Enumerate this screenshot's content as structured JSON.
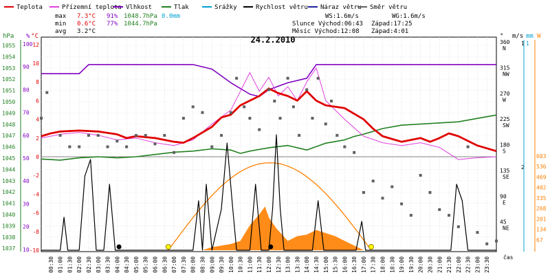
{
  "legend": [
    {
      "label": "Teplota",
      "color": "#e00000"
    },
    {
      "label": "Přízemní teplota",
      "color": "#e040e0"
    },
    {
      "label": "Vlhkost",
      "color": "#8000c0"
    },
    {
      "label": "Tlak",
      "color": "#208020"
    },
    {
      "label": "Srážky",
      "color": "#00a0d0"
    },
    {
      "label": "Rychlost větru",
      "color": "#000000"
    },
    {
      "label": "Náraz větru",
      "color": "#2020a0"
    },
    {
      "label": "Směr větru",
      "color": "#606060"
    }
  ],
  "stats": {
    "max": {
      "label": "max",
      "temp": "7.3°C",
      "hum": "91%",
      "press": "1048.7hPa",
      "rain": "0.0mm"
    },
    "min": {
      "label": "min",
      "temp": "0.6°C",
      "hum": "77%",
      "press": "1044.7hPa"
    },
    "avg": {
      "label": "avg",
      "temp": "3.2°C"
    }
  },
  "info": {
    "ws": "WS:1.6m/s",
    "wg": "WG:1.6m/s",
    "sun": "Slunce Východ:06:43",
    "sunset": "Západ:17:25",
    "moon": "Měsíc  Východ:12:08",
    "moonset": "Západ:4:01"
  },
  "colors": {
    "temp": "#e00000",
    "ground": "#e040e0",
    "hum": "#8000c0",
    "press": "#208020",
    "rain": "#00a0d0",
    "wind": "#000000",
    "gust": "#2020a0",
    "dir": "#606060",
    "solar_curve": "#ff8000",
    "solar_fill": "#ff8000"
  },
  "chart_data": {
    "type": "line",
    "title": "24.2.2010",
    "x_unit": "hour of day",
    "x_ticks": [
      "00:30",
      "01:00",
      "01:30",
      "02:00",
      "02:30",
      "03:00",
      "03:30",
      "04:00",
      "04:30",
      "05:00",
      "05:30",
      "06:00",
      "06:30",
      "07:00",
      "07:30",
      "08:00",
      "08:30",
      "09:00",
      "09:30",
      "10:00",
      "10:30",
      "11:00",
      "11:30",
      "12:00",
      "12:30",
      "13:00",
      "13:30",
      "14:00",
      "14:30",
      "15:00",
      "15:30",
      "16:00",
      "16:30",
      "17:00",
      "17:30",
      "18:00",
      "18:30",
      "19:00",
      "19:30",
      "20:00",
      "20:30",
      "21:00",
      "21:30",
      "22:00",
      "22:30",
      "23:00",
      "23:30"
    ],
    "xlabel": "čas",
    "axes": {
      "hpa": {
        "label": "hPa",
        "ticks": [
          "1055",
          "1054",
          "1053",
          "1052",
          "1051",
          "1050",
          "1049",
          "1048",
          "1047",
          "1046",
          "1045",
          "1044",
          "1043",
          "1042",
          "1041",
          "1040",
          "1039",
          "1038",
          "1037"
        ],
        "range": [
          1037,
          1055.7
        ]
      },
      "percent": {
        "label": "%",
        "ticks": [
          "100",
          "90",
          "80",
          "70",
          "60",
          "50",
          "40",
          "30",
          "20",
          "10"
        ],
        "range": [
          10,
          100
        ]
      },
      "celsius": {
        "label": "°C",
        "ticks": [
          "12",
          "10",
          "8",
          "6",
          "4",
          "2",
          "0",
          "-2",
          "-4",
          "-6",
          "-8",
          "-10"
        ],
        "range": [
          -10,
          12
        ]
      },
      "direction": {
        "label": "°",
        "ticks": [
          "360",
          "315",
          "270",
          "225",
          "180",
          "135",
          "90",
          "45"
        ],
        "names": [
          "N",
          "NW",
          "W",
          "SW",
          "S",
          "SE",
          "E",
          "NE"
        ],
        "range": [
          0,
          360
        ]
      },
      "wind": {
        "label": "m/s",
        "ticks": [
          "1",
          "2"
        ],
        "range": [
          0,
          3
        ]
      },
      "rain": {
        "label": "mm",
        "ticks": [
          "1"
        ]
      },
      "solar": {
        "label": "W",
        "ticks": [
          "603",
          "536",
          "469",
          "402",
          "335",
          "268",
          "201",
          "134",
          "67"
        ],
        "range": [
          0,
          603
        ]
      }
    },
    "series": [
      {
        "name": "Teplota",
        "unit": "°C",
        "points": [
          [
            0,
            2.2
          ],
          [
            0.5,
            2.5
          ],
          [
            1,
            2.7
          ],
          [
            2,
            2.8
          ],
          [
            3,
            2.7
          ],
          [
            4,
            2.4
          ],
          [
            4.5,
            2.0
          ],
          [
            5,
            2.2
          ],
          [
            6,
            2.0
          ],
          [
            7,
            1.6
          ],
          [
            7.5,
            1.5
          ],
          [
            8,
            2.0
          ],
          [
            9,
            3.2
          ],
          [
            9.5,
            4.2
          ],
          [
            10,
            4.5
          ],
          [
            10.5,
            5.5
          ],
          [
            11,
            6.0
          ],
          [
            11.5,
            6.5
          ],
          [
            12,
            7.3
          ],
          [
            12.5,
            6.8
          ],
          [
            13,
            6.5
          ],
          [
            13.5,
            6.0
          ],
          [
            14,
            7.0
          ],
          [
            14.5,
            6.0
          ],
          [
            15,
            5.5
          ],
          [
            16,
            5.2
          ],
          [
            17,
            4.0
          ],
          [
            17.5,
            3.0
          ],
          [
            18,
            2.2
          ],
          [
            19,
            1.6
          ],
          [
            20,
            2.0
          ],
          [
            20.5,
            1.6
          ],
          [
            21,
            2.0
          ],
          [
            21.5,
            2.5
          ],
          [
            22,
            2.2
          ],
          [
            23,
            1.2
          ],
          [
            24,
            0.6
          ]
        ]
      },
      {
        "name": "Přízemní teplota",
        "unit": "°C",
        "points": [
          [
            0,
            2.0
          ],
          [
            1,
            2.4
          ],
          [
            2,
            2.6
          ],
          [
            3,
            2.3
          ],
          [
            4,
            1.8
          ],
          [
            5,
            2.0
          ],
          [
            6,
            1.5
          ],
          [
            7,
            1.2
          ],
          [
            8,
            1.8
          ],
          [
            9,
            3.5
          ],
          [
            10,
            5.0
          ],
          [
            10.5,
            7.0
          ],
          [
            11,
            9.0
          ],
          [
            11.5,
            7.0
          ],
          [
            12,
            8.5
          ],
          [
            12.5,
            6.5
          ],
          [
            13,
            7.5
          ],
          [
            13.5,
            6.0
          ],
          [
            14,
            8.0
          ],
          [
            14.5,
            9.5
          ],
          [
            15,
            6.0
          ],
          [
            16,
            4.0
          ],
          [
            17,
            2.2
          ],
          [
            18,
            1.5
          ],
          [
            19,
            1.2
          ],
          [
            20,
            1.5
          ],
          [
            21,
            1.0
          ],
          [
            22,
            -0.3
          ],
          [
            23,
            -0.1
          ],
          [
            24,
            0.0
          ]
        ]
      },
      {
        "name": "Vlhkost",
        "unit": "%",
        "points": [
          [
            0,
            87
          ],
          [
            2,
            87
          ],
          [
            2.5,
            91
          ],
          [
            6,
            91
          ],
          [
            8,
            91
          ],
          [
            9,
            89
          ],
          [
            10,
            83
          ],
          [
            11,
            78
          ],
          [
            11.5,
            77
          ],
          [
            12,
            80
          ],
          [
            13,
            83
          ],
          [
            14,
            85
          ],
          [
            14.5,
            91
          ],
          [
            16,
            91
          ],
          [
            24,
            91
          ]
        ]
      },
      {
        "name": "Tlak",
        "unit": "hPa",
        "points": [
          [
            0,
            1044.8
          ],
          [
            1,
            1044.7
          ],
          [
            2,
            1044.9
          ],
          [
            3,
            1045.0
          ],
          [
            4,
            1044.9
          ],
          [
            5,
            1045.0
          ],
          [
            6,
            1045.2
          ],
          [
            7,
            1045.4
          ],
          [
            8,
            1045.5
          ],
          [
            9,
            1045.7
          ],
          [
            10,
            1045.6
          ],
          [
            10.5,
            1045.3
          ],
          [
            11,
            1045.5
          ],
          [
            12,
            1045.8
          ],
          [
            13,
            1046.0
          ],
          [
            14,
            1045.6
          ],
          [
            15,
            1046.2
          ],
          [
            16,
            1046.5
          ],
          [
            16.5,
            1046.8
          ],
          [
            17,
            1047.0
          ],
          [
            18,
            1047.5
          ],
          [
            19,
            1047.8
          ],
          [
            20,
            1047.9
          ],
          [
            21,
            1048.0
          ],
          [
            22,
            1048.1
          ],
          [
            23,
            1048.4
          ],
          [
            24,
            1048.7
          ]
        ]
      },
      {
        "name": "Rychlost větru",
        "unit": "m/s",
        "points": [
          [
            0,
            0
          ],
          [
            1,
            0
          ],
          [
            1.2,
            0.8
          ],
          [
            1.4,
            0
          ],
          [
            2,
            0
          ],
          [
            2.3,
            1.8
          ],
          [
            2.6,
            2.2
          ],
          [
            2.9,
            0
          ],
          [
            3.3,
            0
          ],
          [
            3.6,
            1.6
          ],
          [
            3.9,
            0
          ],
          [
            5,
            0
          ],
          [
            8,
            0
          ],
          [
            8.3,
            1.2
          ],
          [
            8.5,
            0
          ],
          [
            8.7,
            1.6
          ],
          [
            9,
            0
          ],
          [
            9.5,
            1.0
          ],
          [
            9.8,
            2.6
          ],
          [
            10.1,
            1.0
          ],
          [
            10.3,
            0
          ],
          [
            11,
            0
          ],
          [
            11.3,
            1.6
          ],
          [
            11.6,
            0
          ],
          [
            12,
            0
          ],
          [
            12.2,
            1.0
          ],
          [
            12.4,
            2.8
          ],
          [
            12.6,
            1.0
          ],
          [
            12.8,
            0
          ],
          [
            13.5,
            0
          ],
          [
            14.3,
            0
          ],
          [
            14.6,
            1.2
          ],
          [
            14.9,
            0
          ],
          [
            16,
            0
          ],
          [
            16.6,
            0
          ],
          [
            16.9,
            0.7
          ],
          [
            17.1,
            0
          ],
          [
            20,
            0
          ],
          [
            21.6,
            0
          ],
          [
            21.9,
            1.6
          ],
          [
            22.2,
            1.2
          ],
          [
            22.5,
            0
          ],
          [
            23.5,
            0
          ],
          [
            24,
            0
          ]
        ]
      },
      {
        "name": "Slunce",
        "unit": "W",
        "points": [
          [
            6.7,
            0
          ],
          [
            8,
            160
          ],
          [
            9,
            300
          ],
          [
            10,
            420
          ],
          [
            11,
            510
          ],
          [
            12,
            560
          ],
          [
            13,
            540
          ],
          [
            14,
            470
          ],
          [
            15,
            350
          ],
          [
            16,
            210
          ],
          [
            17,
            70
          ],
          [
            17.4,
            0
          ]
        ]
      },
      {
        "name": "Solární záření",
        "unit": "W",
        "points": [
          [
            8.5,
            0
          ],
          [
            9,
            20
          ],
          [
            10,
            40
          ],
          [
            10.5,
            60
          ],
          [
            11,
            160
          ],
          [
            11.5,
            230
          ],
          [
            11.8,
            280
          ],
          [
            12,
            210
          ],
          [
            12.4,
            140
          ],
          [
            12.7,
            100
          ],
          [
            13,
            60
          ],
          [
            13.5,
            90
          ],
          [
            14,
            100
          ],
          [
            14.5,
            130
          ],
          [
            15,
            110
          ],
          [
            15.5,
            90
          ],
          [
            16,
            60
          ],
          [
            16.5,
            30
          ],
          [
            17,
            0
          ]
        ]
      }
    ],
    "wind_direction_points": [
      [
        0,
        230
      ],
      [
        0.3,
        275
      ],
      [
        1,
        200
      ],
      [
        1.5,
        180
      ],
      [
        2,
        180
      ],
      [
        2.5,
        200
      ],
      [
        3,
        200
      ],
      [
        3.5,
        180
      ],
      [
        4,
        190
      ],
      [
        4.5,
        180
      ],
      [
        5,
        200
      ],
      [
        5.5,
        200
      ],
      [
        6,
        185
      ],
      [
        6.5,
        200
      ],
      [
        7,
        170
      ],
      [
        7.5,
        230
      ],
      [
        8,
        250
      ],
      [
        8.5,
        240
      ],
      [
        9,
        180
      ],
      [
        9.5,
        200
      ],
      [
        10,
        240
      ],
      [
        10.3,
        300
      ],
      [
        10.7,
        250
      ],
      [
        11,
        230
      ],
      [
        11.5,
        210
      ],
      [
        12,
        280
      ],
      [
        12.3,
        260
      ],
      [
        12.6,
        230
      ],
      [
        13,
        300
      ],
      [
        13.3,
        250
      ],
      [
        13.6,
        200
      ],
      [
        14,
        280
      ],
      [
        14.3,
        230
      ],
      [
        14.6,
        300
      ],
      [
        15,
        220
      ],
      [
        15.3,
        260
      ],
      [
        15.6,
        200
      ],
      [
        16,
        180
      ],
      [
        16.5,
        170
      ],
      [
        17,
        100
      ],
      [
        17.5,
        120
      ],
      [
        18,
        90
      ],
      [
        18.5,
        110
      ],
      [
        19,
        80
      ],
      [
        19.5,
        60
      ],
      [
        20,
        130
      ],
      [
        20.5,
        100
      ],
      [
        21,
        70
      ],
      [
        21.5,
        60
      ],
      [
        22,
        40
      ],
      [
        22.5,
        180
      ],
      [
        23,
        30
      ],
      [
        23.5,
        10
      ],
      [
        24,
        15
      ]
    ],
    "markers": {
      "sunrise_hour": 6.7,
      "sunset_hour": 17.4,
      "moon_black_hours": [
        4.1,
        12.1
      ]
    }
  }
}
